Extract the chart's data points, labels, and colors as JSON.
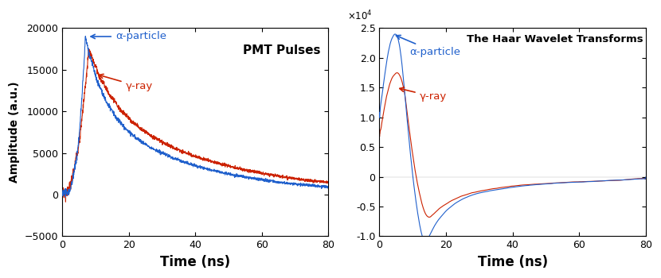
{
  "title_left": "PMT Pulses",
  "title_right": "The Haar Wavelet Transforms",
  "xlabel": "Time (ns)",
  "ylabel_left": "Amplitude (a.u.)",
  "xlim": [
    0,
    80
  ],
  "ylim_left": [
    -5000,
    20000
  ],
  "ylim_right": [
    -10000,
    25000
  ],
  "alpha_color": "#2060cc",
  "gamma_color": "#cc2200",
  "alpha_label": "α-particle",
  "gamma_label": "γ-ray",
  "figsize": [
    8.3,
    3.5
  ],
  "dpi": 100
}
